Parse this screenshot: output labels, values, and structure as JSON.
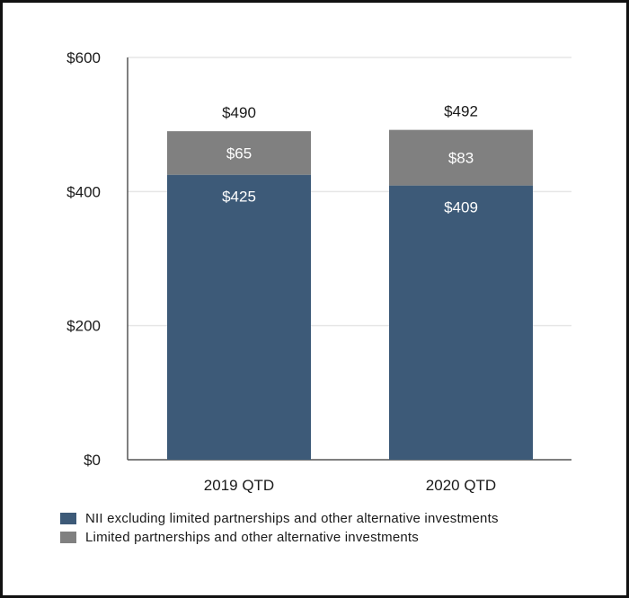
{
  "chart_data": {
    "type": "bar",
    "stacked": true,
    "categories": [
      "2019 QTD",
      "2020 QTD"
    ],
    "series": [
      {
        "name": "NII excluding limited partnerships and other alternative investments",
        "values": [
          425,
          409
        ],
        "labels": [
          "$425",
          "$409"
        ],
        "color": "#3d5a78"
      },
      {
        "name": "Limited partnerships and other alternative investments",
        "values": [
          65,
          83
        ],
        "labels": [
          "$65",
          "$83"
        ],
        "color": "#808080"
      }
    ],
    "totals": [
      490,
      492
    ],
    "total_labels": [
      "$490",
      "$492"
    ],
    "yticks": [
      0,
      200,
      400,
      600
    ],
    "ytick_labels": [
      "$0",
      "$200",
      "$400",
      "$600"
    ],
    "ylim": [
      0,
      600
    ],
    "grid": true,
    "title": "",
    "xlabel": "",
    "ylabel": "",
    "legend_position": "bottom-left"
  },
  "colors": {
    "grid": "#e6e6e6",
    "axis": "#555555",
    "text": "#1a1a1a",
    "bar_label": "#ffffff"
  }
}
